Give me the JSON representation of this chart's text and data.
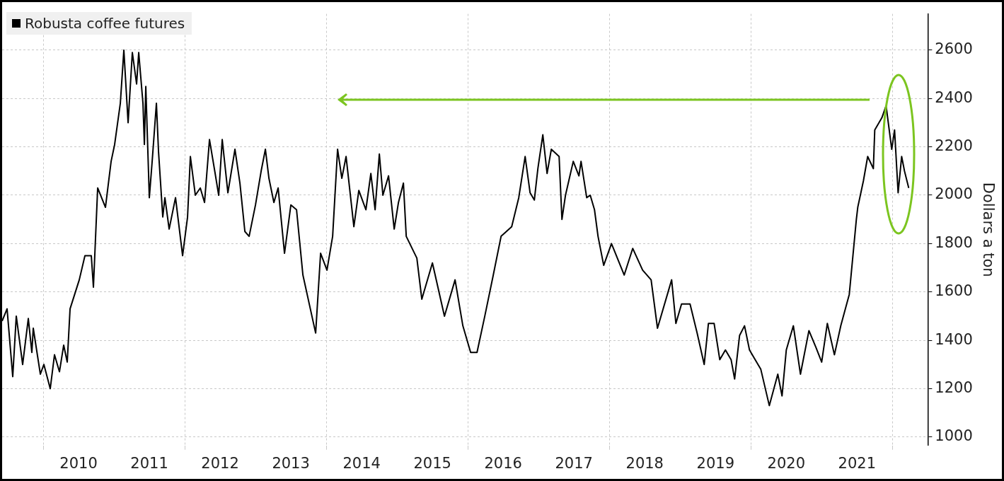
{
  "chart_data": {
    "type": "line",
    "ylabel": "Dollars a ton",
    "legend": "top left",
    "xlim": [
      2009.42,
      2022.5
    ],
    "ylim": [
      965,
      2750
    ],
    "xticks": [
      {
        "value": 2010,
        "label": null
      },
      {
        "value": 2010.5,
        "label": "2010"
      },
      {
        "value": 2011.5,
        "label": "2011"
      },
      {
        "value": 2012,
        "label": null
      },
      {
        "value": 2012.5,
        "label": "2012"
      },
      {
        "value": 2013.5,
        "label": "2013"
      },
      {
        "value": 2014,
        "label": null
      },
      {
        "value": 2014.5,
        "label": "2014"
      },
      {
        "value": 2015.5,
        "label": "2015"
      },
      {
        "value": 2016,
        "label": null
      },
      {
        "value": 2016.5,
        "label": "2016"
      },
      {
        "value": 2017.5,
        "label": "2017"
      },
      {
        "value": 2018,
        "label": null
      },
      {
        "value": 2018.5,
        "label": "2018"
      },
      {
        "value": 2019.5,
        "label": "2019"
      },
      {
        "value": 2020,
        "label": null
      },
      {
        "value": 2020.5,
        "label": "2020"
      },
      {
        "value": 2021.5,
        "label": "2021"
      },
      {
        "value": 2022,
        "label": null
      }
    ],
    "yticks": [
      1000,
      1200,
      1400,
      1600,
      1800,
      2000,
      2200,
      2400,
      2600
    ],
    "grid": true,
    "series": [
      {
        "name": "Robusta coffee futures",
        "color": "#000000",
        "x": [
          2009.42,
          2009.49,
          2009.57,
          2009.62,
          2009.71,
          2009.79,
          2009.84,
          2009.86,
          2009.96,
          2010.01,
          2010.1,
          2010.16,
          2010.23,
          2010.29,
          2010.34,
          2010.38,
          2010.51,
          2010.59,
          2010.68,
          2010.71,
          2010.77,
          2010.88,
          2010.96,
          2011.01,
          2011.09,
          2011.14,
          2011.2,
          2011.26,
          2011.32,
          2011.35,
          2011.41,
          2011.43,
          2011.45,
          2011.5,
          2011.54,
          2011.6,
          2011.63,
          2011.69,
          2011.72,
          2011.78,
          2011.87,
          2011.97,
          2012.04,
          2012.08,
          2012.15,
          2012.22,
          2012.28,
          2012.35,
          2012.43,
          2012.48,
          2012.53,
          2012.61,
          2012.71,
          2012.78,
          2012.85,
          2012.91,
          2013.0,
          2013.08,
          2013.14,
          2013.19,
          2013.26,
          2013.32,
          2013.41,
          2013.5,
          2013.58,
          2013.67,
          2013.85,
          2013.92,
          2014.01,
          2014.09,
          2014.16,
          2014.22,
          2014.28,
          2014.39,
          2014.46,
          2014.56,
          2014.63,
          2014.69,
          2014.75,
          2014.8,
          2014.88,
          2014.96,
          2015.02,
          2015.09,
          2015.13,
          2015.28,
          2015.35,
          2015.5,
          2015.67,
          2015.82,
          2015.93,
          2016.04,
          2016.13,
          2016.24,
          2016.36,
          2016.47,
          2016.62,
          2016.72,
          2016.81,
          2016.88,
          2016.94,
          2016.99,
          2017.06,
          2017.12,
          2017.18,
          2017.29,
          2017.33,
          2017.38,
          2017.49,
          2017.57,
          2017.6,
          2017.68,
          2017.73,
          2017.79,
          2017.84,
          2017.92,
          2018.03,
          2018.21,
          2018.33,
          2018.47,
          2018.59,
          2018.68,
          2018.88,
          2018.94,
          2019.02,
          2019.14,
          2019.24,
          2019.34,
          2019.4,
          2019.48,
          2019.56,
          2019.64,
          2019.72,
          2019.77,
          2019.84,
          2019.91,
          2019.98,
          2020.14,
          2020.26,
          2020.38,
          2020.44,
          2020.5,
          2020.6,
          2020.7,
          2020.82,
          2020.92,
          2021.0,
          2021.08,
          2021.18,
          2021.27,
          2021.39,
          2021.49,
          2021.51,
          2021.59,
          2021.65,
          2021.73,
          2021.75,
          2021.85,
          2021.91,
          2021.99,
          2022.03,
          2022.08,
          2022.13,
          2022.17,
          2022.23
        ],
        "values": [
          1480,
          1530,
          1250,
          1500,
          1300,
          1490,
          1350,
          1450,
          1260,
          1300,
          1200,
          1340,
          1270,
          1380,
          1310,
          1530,
          1650,
          1750,
          1750,
          1620,
          2030,
          1950,
          2140,
          2210,
          2380,
          2600,
          2300,
          2590,
          2460,
          2590,
          2380,
          2210,
          2450,
          1990,
          2140,
          2380,
          2180,
          1910,
          1990,
          1860,
          1990,
          1750,
          1910,
          2160,
          2000,
          2030,
          1970,
          2230,
          2090,
          2000,
          2230,
          2010,
          2190,
          2050,
          1850,
          1830,
          1960,
          2100,
          2190,
          2070,
          1970,
          2030,
          1760,
          1960,
          1940,
          1670,
          1430,
          1760,
          1690,
          1830,
          2190,
          2070,
          2160,
          1870,
          2020,
          1940,
          2090,
          1940,
          2170,
          2000,
          2080,
          1860,
          1970,
          2050,
          1830,
          1740,
          1570,
          1720,
          1500,
          1650,
          1460,
          1350,
          1350,
          1500,
          1670,
          1830,
          1870,
          1990,
          2160,
          2010,
          1980,
          2110,
          2250,
          2090,
          2190,
          2160,
          1900,
          2000,
          2140,
          2080,
          2140,
          1990,
          2000,
          1940,
          1830,
          1710,
          1800,
          1670,
          1780,
          1690,
          1650,
          1450,
          1650,
          1470,
          1550,
          1550,
          1430,
          1300,
          1470,
          1470,
          1320,
          1360,
          1320,
          1240,
          1420,
          1460,
          1360,
          1280,
          1130,
          1260,
          1170,
          1360,
          1460,
          1260,
          1440,
          1370,
          1310,
          1470,
          1340,
          1460,
          1590,
          1900,
          1950,
          2060,
          2160,
          2110,
          2270,
          2320,
          2370,
          2190,
          2270,
          2010,
          2160,
          2100,
          2030
        ]
      }
    ]
  }
}
